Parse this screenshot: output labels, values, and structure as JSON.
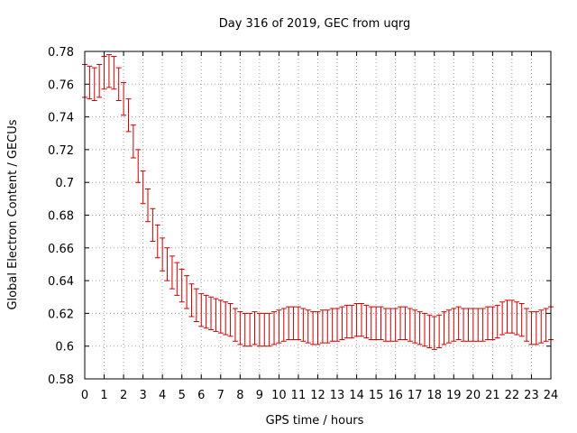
{
  "chart_data": {
    "type": "line",
    "title": "Day 316 of 2019, GEC from uqrg",
    "xlabel": "GPS time / hours",
    "ylabel": "Global Electron Content / GECUs",
    "xlim": [
      0,
      24
    ],
    "ylim": [
      0.58,
      0.78
    ],
    "xticks": [
      0,
      1,
      2,
      3,
      4,
      5,
      6,
      7,
      8,
      9,
      10,
      11,
      12,
      13,
      14,
      15,
      16,
      17,
      18,
      19,
      20,
      21,
      22,
      23,
      24
    ],
    "yticks": [
      0.58,
      0.6,
      0.62,
      0.64,
      0.66,
      0.68,
      0.7,
      0.72,
      0.74,
      0.76,
      0.78
    ],
    "grid": true,
    "color": "#cc0000",
    "series": [
      {
        "name": "GEC",
        "x": [
          0,
          0.25,
          0.5,
          0.75,
          1,
          1.25,
          1.5,
          1.75,
          2,
          2.25,
          2.5,
          2.75,
          3,
          3.25,
          3.5,
          3.75,
          4,
          4.25,
          4.5,
          4.75,
          5,
          5.25,
          5.5,
          5.75,
          6,
          6.25,
          6.5,
          6.75,
          7,
          7.25,
          7.5,
          7.75,
          8,
          8.25,
          8.5,
          8.75,
          9,
          9.25,
          9.5,
          9.75,
          10,
          10.25,
          10.5,
          10.75,
          11,
          11.25,
          11.5,
          11.75,
          12,
          12.25,
          12.5,
          12.75,
          13,
          13.25,
          13.5,
          13.75,
          14,
          14.25,
          14.5,
          14.75,
          15,
          15.25,
          15.5,
          15.75,
          16,
          16.25,
          16.5,
          16.75,
          17,
          17.25,
          17.5,
          17.75,
          18,
          18.25,
          18.5,
          18.75,
          19,
          19.25,
          19.5,
          19.75,
          20,
          20.25,
          20.5,
          20.75,
          21,
          21.25,
          21.5,
          21.75,
          22,
          22.25,
          22.5,
          22.75,
          23,
          23.25,
          23.5,
          23.75,
          24
        ],
        "y": [
          0.762,
          0.761,
          0.76,
          0.762,
          0.767,
          0.768,
          0.767,
          0.76,
          0.751,
          0.741,
          0.725,
          0.71,
          0.697,
          0.686,
          0.674,
          0.664,
          0.656,
          0.65,
          0.645,
          0.641,
          0.637,
          0.633,
          0.628,
          0.625,
          0.622,
          0.621,
          0.62,
          0.619,
          0.618,
          0.617,
          0.616,
          0.613,
          0.611,
          0.61,
          0.61,
          0.611,
          0.61,
          0.61,
          0.61,
          0.611,
          0.612,
          0.613,
          0.614,
          0.614,
          0.614,
          0.613,
          0.612,
          0.611,
          0.611,
          0.612,
          0.612,
          0.613,
          0.613,
          0.614,
          0.615,
          0.615,
          0.616,
          0.616,
          0.615,
          0.614,
          0.614,
          0.614,
          0.613,
          0.613,
          0.613,
          0.614,
          0.614,
          0.613,
          0.612,
          0.611,
          0.61,
          0.609,
          0.608,
          0.609,
          0.611,
          0.612,
          0.613,
          0.614,
          0.613,
          0.613,
          0.613,
          0.613,
          0.613,
          0.614,
          0.614,
          0.615,
          0.617,
          0.618,
          0.618,
          0.617,
          0.616,
          0.613,
          0.611,
          0.611,
          0.612,
          0.613,
          0.614
        ],
        "err": 0.01
      }
    ]
  }
}
